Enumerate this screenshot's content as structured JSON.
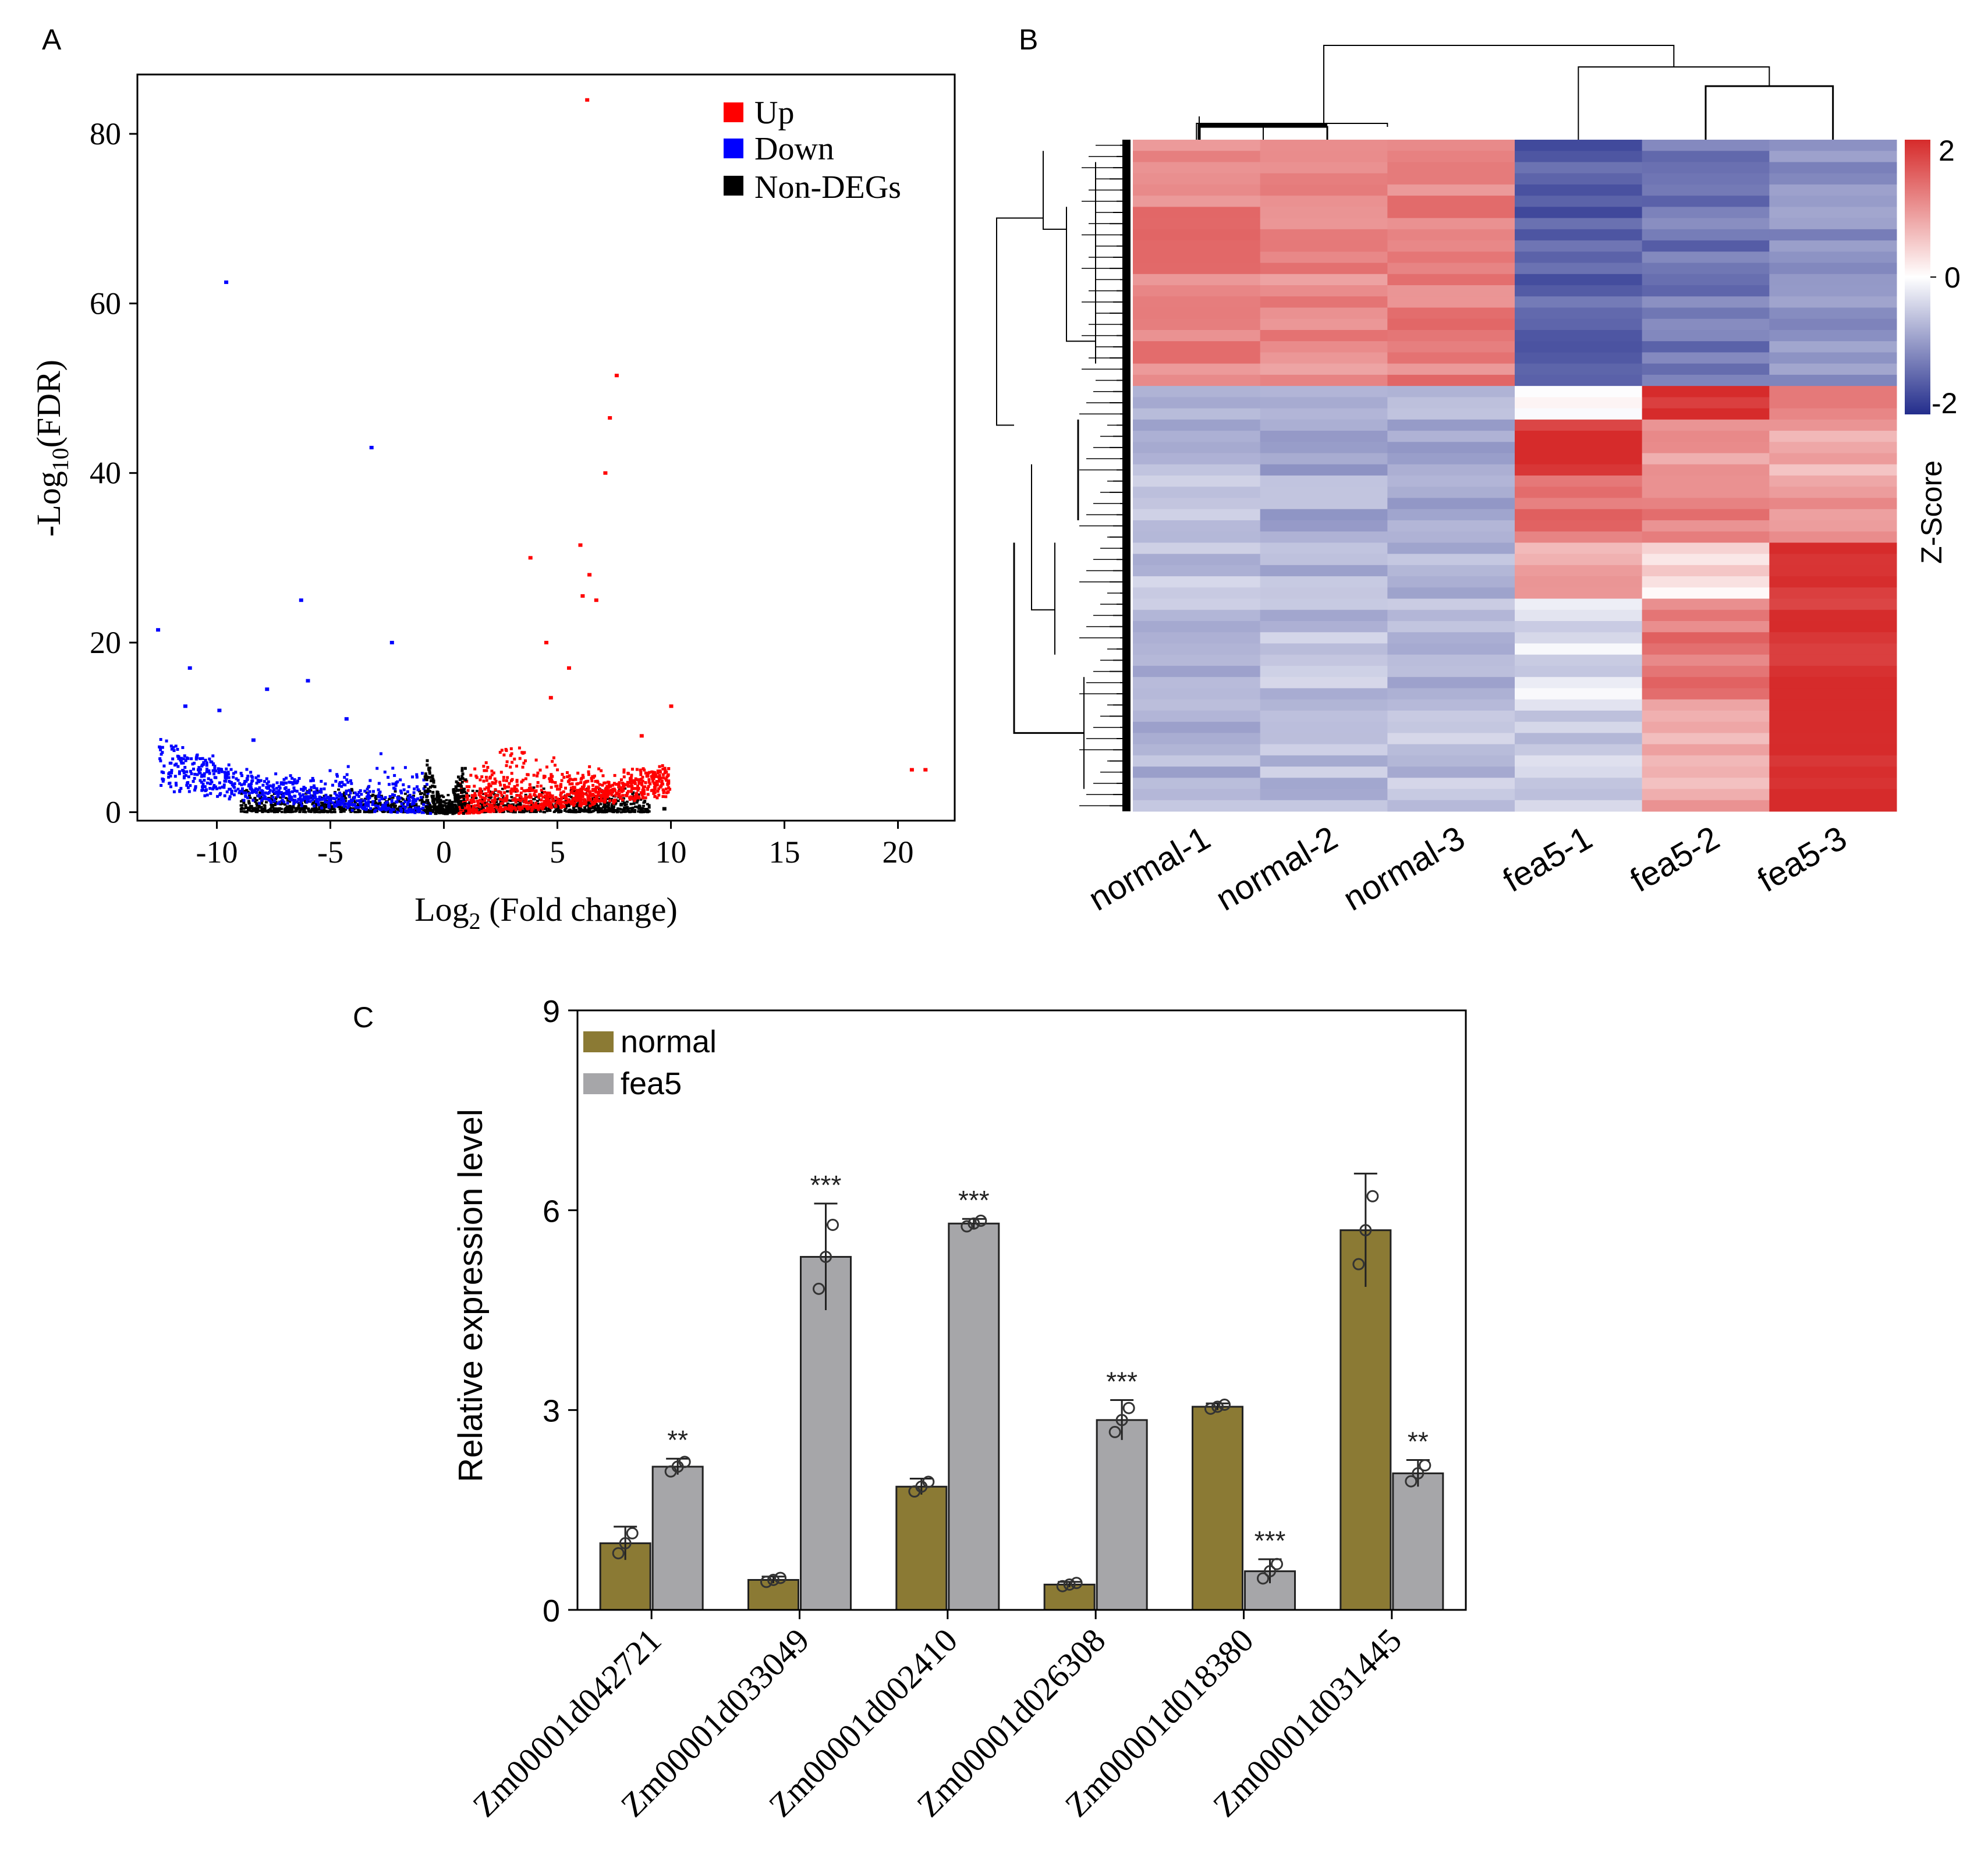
{
  "colors": {
    "up": "#ff0000",
    "down": "#0000ff",
    "nondeg": "#000000",
    "heat_high": "#d62b2b",
    "heat_mid": "#ffffff",
    "heat_low": "#232d8c",
    "bar_normal": "#8b7a34",
    "bar_fea5": "#a6a6a9"
  },
  "chart_data": [
    {
      "panel": "A",
      "type": "scatter",
      "title": "",
      "xlabel_main": "Log",
      "xlabel_sub": "2",
      "xlabel_rest": " (Fold change)",
      "ylabel_main": "-Log",
      "ylabel_sub": "10",
      "ylabel_rest": "(FDR)",
      "xlim": [
        -13.5,
        22.5
      ],
      "ylim": [
        -1,
        87
      ],
      "xticks": [
        -10,
        -5,
        0,
        5,
        10,
        15,
        20
      ],
      "xtick_labels": [
        "-10",
        "-5",
        "0",
        "5",
        "10",
        "15",
        "20"
      ],
      "yticks": [
        0,
        20,
        40,
        60,
        80
      ],
      "ytick_labels": [
        "0",
        "20",
        "40",
        "60",
        "80"
      ],
      "legend": [
        "Up",
        "Down",
        "Non-DEGs"
      ],
      "legend_position": "top-right",
      "series": [
        {
          "name": "Up",
          "points": [
            [
              6.3,
              84
            ],
            [
              7.6,
              51.5
            ],
            [
              7.3,
              46.5
            ],
            [
              7.1,
              40
            ],
            [
              6.0,
              31.5
            ],
            [
              6.4,
              28
            ],
            [
              3.8,
              30
            ],
            [
              6.7,
              25
            ],
            [
              6.1,
              25.5
            ],
            [
              20.6,
              5
            ],
            [
              21.2,
              5
            ],
            [
              10.0,
              12.5
            ],
            [
              8.7,
              9
            ],
            [
              4.5,
              20
            ],
            [
              5.5,
              17
            ],
            [
              4.7,
              13.5
            ]
          ]
        },
        {
          "name": "Down",
          "points": [
            [
              -9.6,
              62.5
            ],
            [
              -3.2,
              43
            ],
            [
              -6.3,
              25
            ],
            [
              -2.3,
              20
            ],
            [
              -12.6,
              21.5
            ],
            [
              -11.2,
              17
            ],
            [
              -11.4,
              12.5
            ],
            [
              -7.8,
              14.5
            ],
            [
              -6.0,
              15.5
            ],
            [
              -9.9,
              12
            ],
            [
              -4.3,
              11
            ],
            [
              -8.4,
              8.5
            ]
          ]
        },
        {
          "name": "Non-DEGs",
          "points": [
            [
              -8.0,
              0.3
            ],
            [
              -8.6,
              0.4
            ],
            [
              -6.5,
              0.4
            ],
            [
              9.7,
              0.4
            ],
            [
              8.9,
              0.3
            ]
          ]
        }
      ]
    },
    {
      "panel": "B",
      "type": "heatmap",
      "columns": [
        "normal-1",
        "normal-2",
        "normal-3",
        "fea5-1",
        "fea5-2",
        "fea5-3"
      ],
      "colorbar_label": "Z-Score",
      "colorbar_range": [
        -2,
        2
      ],
      "colorbar_ticks": [
        "2",
        "0",
        "-2"
      ],
      "row_blocks": [
        {
          "rows": 22,
          "values": [
            1.2,
            1.1,
            1.2,
            -1.5,
            -1.3,
            -1.0
          ]
        },
        {
          "rows": 3,
          "values": [
            -0.8,
            -0.7,
            -0.6,
            0.1,
            2.0,
            1.2
          ]
        },
        {
          "rows": 5,
          "values": [
            -0.7,
            -0.8,
            -0.9,
            1.9,
            1.0,
            0.8
          ]
        },
        {
          "rows": 6,
          "values": [
            -0.6,
            -0.8,
            -0.9,
            1.4,
            1.2,
            0.9
          ]
        },
        {
          "rows": 5,
          "values": [
            -0.6,
            -0.7,
            -0.7,
            0.8,
            0.3,
            1.9
          ]
        },
        {
          "rows": 9,
          "values": [
            -0.7,
            -0.6,
            -0.7,
            -0.3,
            1.3,
            2.0
          ]
        },
        {
          "rows": 10,
          "values": [
            -0.7,
            -0.6,
            -0.6,
            -0.5,
            0.8,
            2.0
          ]
        }
      ],
      "row_count": 60
    },
    {
      "panel": "C",
      "type": "bar",
      "ylabel": "Relative expression level",
      "ylim": [
        0,
        9
      ],
      "yticks": [
        0,
        3,
        6,
        9
      ],
      "ytick_labels": [
        "0",
        "3",
        "6",
        "9"
      ],
      "categories": [
        "Zm00001d042721",
        "Zm00001d033049",
        "Zm00001d002410",
        "Zm00001d026308",
        "Zm00001d018380",
        "Zm00001d031445"
      ],
      "series": [
        {
          "name": "normal",
          "values": [
            1.0,
            0.45,
            1.85,
            0.38,
            3.05,
            5.7
          ],
          "errors": [
            0.25,
            0.05,
            0.12,
            0.04,
            0.05,
            0.85
          ]
        },
        {
          "name": "fea5",
          "values": [
            2.15,
            5.3,
            5.8,
            2.85,
            0.58,
            2.05
          ],
          "errors": [
            0.12,
            0.8,
            0.07,
            0.3,
            0.18,
            0.2
          ]
        }
      ],
      "significance": [
        "**",
        "***",
        "***",
        "***",
        "***",
        "**"
      ],
      "legend_position": "top-left"
    }
  ],
  "panels": {
    "A": "A",
    "B": "B",
    "C": "C"
  }
}
